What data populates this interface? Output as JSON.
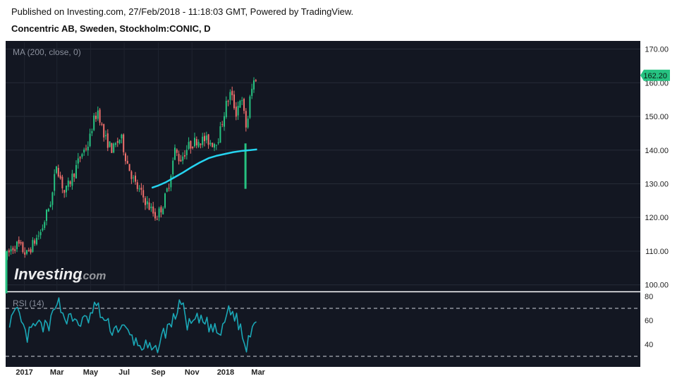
{
  "header": {
    "published": "Published on Investing.com, 27/Feb/2018 - 11:18:03 GMT, Powered by TradingView.",
    "instrument": "Concentric AB, Sweden, Stockholm:CONIC, D"
  },
  "watermark": {
    "brand": "Investing",
    "suffix": ".com"
  },
  "colors": {
    "background": "#131722",
    "up_candle": "#26c281",
    "down_candle": "#ef6f6c",
    "ma_line": "#25d4f0",
    "rsi_line": "#1aa7b6",
    "last_price_tag": "#26c281"
  },
  "chart_data": [
    {
      "type": "candlestick",
      "title": "MA (200, close, 0)",
      "ylim": [
        97,
        172
      ],
      "y_ticks": [
        "170.00",
        "160.00",
        "150.00",
        "140.00",
        "130.00",
        "120.00",
        "110.00",
        "100.00"
      ],
      "last_price": "162.20",
      "price_path": {
        "dates": [
          "2016-11-28",
          "2016-12-10",
          "2016-12-20",
          "2017-01-05",
          "2017-01-20",
          "2017-02-01",
          "2017-02-10",
          "2017-02-20",
          "2017-02-28",
          "2017-03-15",
          "2017-03-31",
          "2017-04-15",
          "2017-04-28",
          "2017-05-05",
          "2017-05-15",
          "2017-05-25",
          "2017-06-10",
          "2017-06-25",
          "2017-07-05",
          "2017-07-20",
          "2017-08-01",
          "2017-08-12",
          "2017-08-20",
          "2017-08-28",
          "2017-09-10",
          "2017-09-20",
          "2017-10-01",
          "2017-10-10",
          "2017-10-25",
          "2017-11-10",
          "2017-11-25",
          "2017-12-10",
          "2017-12-20",
          "2018-01-01",
          "2018-01-10",
          "2018-01-20",
          "2018-01-28",
          "2018-02-02",
          "2018-02-08",
          "2018-02-14",
          "2018-02-20",
          "2018-02-27"
        ],
        "closes": [
          108,
          111,
          112,
          109,
          113,
          116,
          121,
          126,
          136,
          127,
          133,
          139,
          142,
          148,
          152,
          144,
          140,
          144,
          137,
          130,
          127,
          124,
          122,
          120,
          124,
          130,
          140,
          137,
          141,
          143,
          143,
          142,
          144,
          153,
          157,
          151,
          156,
          152,
          146,
          155,
          160,
          162.2
        ]
      },
      "ma200": {
        "dates": [
          "2017-08-20",
          "2017-09-01",
          "2017-09-15",
          "2017-10-01",
          "2017-10-15",
          "2017-11-01",
          "2017-11-15",
          "2017-12-01",
          "2017-12-15",
          "2018-01-01",
          "2018-01-15",
          "2018-02-01",
          "2018-02-15",
          "2018-02-27"
        ],
        "values": [
          128.8,
          129.5,
          130.5,
          132,
          133.3,
          135,
          136.3,
          137.6,
          138.3,
          138.9,
          139.4,
          139.8,
          140,
          140.2
        ]
      },
      "gap_spike": {
        "date": "2018-02-06",
        "low": 128.5,
        "high": 142
      }
    },
    {
      "type": "line",
      "title": "RSI (14)",
      "ylim": [
        25,
        80
      ],
      "y_ticks": [
        "80",
        "60",
        "40"
      ],
      "bands": [
        70,
        30
      ],
      "x_ticks": [
        "2017",
        "Mar",
        "May",
        "Jul",
        "Sep",
        "Nov",
        "2018",
        "Mar"
      ],
      "rsi_path": {
        "dates": [
          "2016-12-05",
          "2016-12-20",
          "2017-01-05",
          "2017-01-20",
          "2017-02-05",
          "2017-02-15",
          "2017-02-28",
          "2017-03-15",
          "2017-04-01",
          "2017-04-15",
          "2017-04-30",
          "2017-05-10",
          "2017-05-25",
          "2017-06-10",
          "2017-06-25",
          "2017-07-10",
          "2017-07-25",
          "2017-08-10",
          "2017-08-25",
          "2017-09-05",
          "2017-09-20",
          "2017-10-01",
          "2017-10-10",
          "2017-10-25",
          "2017-11-10",
          "2017-11-25",
          "2017-12-10",
          "2017-12-25",
          "2018-01-05",
          "2018-01-15",
          "2018-01-30",
          "2018-02-06",
          "2018-02-12",
          "2018-02-20",
          "2018-02-27"
        ],
        "values": [
          60,
          66,
          45,
          56,
          55,
          52,
          80,
          62,
          60,
          58,
          62,
          74,
          60,
          52,
          55,
          48,
          40,
          38,
          32,
          45,
          55,
          62,
          78,
          55,
          60,
          58,
          52,
          48,
          70,
          66,
          52,
          33,
          48,
          58,
          63
        ]
      }
    }
  ]
}
